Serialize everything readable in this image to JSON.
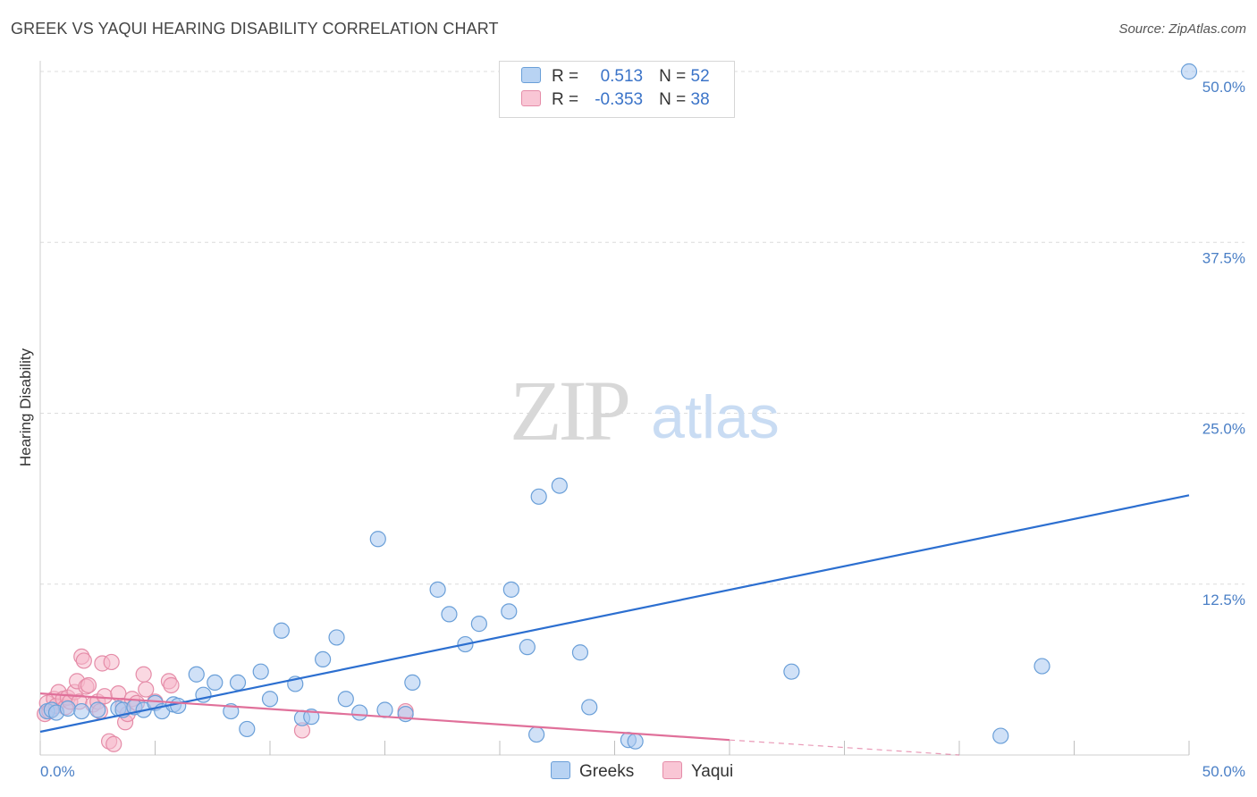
{
  "header": {
    "title": "GREEK VS YAQUI HEARING DISABILITY CORRELATION CHART",
    "source": "Source: ZipAtlas.com"
  },
  "watermark": {
    "zip": "ZIP",
    "atlas": "atlas"
  },
  "legend": {
    "rows": [
      {
        "r_label": "R =",
        "r_value": "0.513",
        "n_label": "N =",
        "n_value": "52"
      },
      {
        "r_label": "R =",
        "r_value": "-0.353",
        "n_label": "N =",
        "n_value": "38"
      }
    ]
  },
  "bottom_legend": {
    "greeks": "Greeks",
    "yaqui": "Yaqui"
  },
  "colors": {
    "greeks_fill": "#a9c8f0",
    "greeks_stroke": "#6a9fd8",
    "greeks_line": "#2c6fd0",
    "yaqui_fill": "#f5b8cb",
    "yaqui_stroke": "#e58ca8",
    "yaqui_line": "#e0709a",
    "tick": "#4a7fc6",
    "grid": "#dcdcdc"
  },
  "chart_data": {
    "type": "scatter",
    "title": "GREEK VS YAQUI HEARING DISABILITY CORRELATION CHART",
    "xlabel": "",
    "ylabel": "Hearing Disability",
    "xlim": [
      0,
      50
    ],
    "ylim": [
      0,
      52
    ],
    "y_ticks": [
      12.5,
      25.0,
      37.5,
      50.0
    ],
    "y_tick_labels": [
      "12.5%",
      "25.0%",
      "37.5%",
      "50.0%"
    ],
    "x_tick_labels": [
      "0.0%",
      "50.0%"
    ],
    "series": [
      {
        "name": "Greeks",
        "r": 0.513,
        "n": 52,
        "trend": {
          "x": [
            0,
            50
          ],
          "y": [
            1.7,
            19.0
          ]
        },
        "points": [
          [
            0.3,
            3.2
          ],
          [
            0.5,
            3.3
          ],
          [
            0.7,
            3.1
          ],
          [
            1.2,
            3.4
          ],
          [
            1.8,
            3.2
          ],
          [
            2.5,
            3.3
          ],
          [
            3.4,
            3.4
          ],
          [
            3.6,
            3.3
          ],
          [
            4.1,
            3.5
          ],
          [
            4.5,
            3.3
          ],
          [
            5.0,
            3.8
          ],
          [
            5.3,
            3.2
          ],
          [
            5.8,
            3.7
          ],
          [
            6.0,
            3.6
          ],
          [
            6.8,
            5.9
          ],
          [
            7.1,
            4.4
          ],
          [
            7.6,
            5.3
          ],
          [
            8.3,
            3.2
          ],
          [
            8.6,
            5.3
          ],
          [
            9.0,
            1.9
          ],
          [
            9.6,
            6.1
          ],
          [
            10.0,
            4.1
          ],
          [
            10.5,
            9.1
          ],
          [
            11.1,
            5.2
          ],
          [
            11.4,
            2.7
          ],
          [
            11.8,
            2.8
          ],
          [
            12.3,
            7.0
          ],
          [
            12.9,
            8.6
          ],
          [
            13.3,
            4.1
          ],
          [
            13.9,
            3.1
          ],
          [
            14.7,
            15.8
          ],
          [
            15.0,
            3.3
          ],
          [
            15.9,
            3.0
          ],
          [
            16.2,
            5.3
          ],
          [
            17.3,
            12.1
          ],
          [
            17.8,
            10.3
          ],
          [
            18.5,
            8.1
          ],
          [
            19.1,
            9.6
          ],
          [
            20.4,
            10.5
          ],
          [
            20.5,
            12.1
          ],
          [
            21.2,
            7.9
          ],
          [
            21.6,
            1.5
          ],
          [
            21.7,
            18.9
          ],
          [
            22.6,
            19.7
          ],
          [
            23.5,
            7.5
          ],
          [
            23.9,
            3.5
          ],
          [
            25.6,
            1.1
          ],
          [
            25.9,
            1.0
          ],
          [
            32.7,
            6.1
          ],
          [
            41.8,
            1.4
          ],
          [
            43.6,
            6.5
          ],
          [
            50.0,
            50.0
          ]
        ]
      },
      {
        "name": "Yaqui",
        "r": -0.353,
        "n": 38,
        "trend": {
          "x": [
            0,
            30
          ],
          "y": [
            4.5,
            1.1
          ]
        },
        "trend_dashed": {
          "x": [
            30,
            40
          ],
          "y": [
            1.1,
            0.0
          ]
        },
        "points": [
          [
            0.2,
            3.0
          ],
          [
            0.3,
            3.8
          ],
          [
            0.4,
            3.2
          ],
          [
            0.6,
            4.1
          ],
          [
            0.7,
            3.6
          ],
          [
            0.8,
            4.6
          ],
          [
            1.0,
            4.1
          ],
          [
            1.1,
            3.5
          ],
          [
            1.2,
            4.2
          ],
          [
            1.3,
            3.9
          ],
          [
            1.5,
            4.6
          ],
          [
            1.6,
            5.4
          ],
          [
            1.7,
            3.9
          ],
          [
            1.8,
            7.2
          ],
          [
            1.9,
            6.9
          ],
          [
            2.0,
            5.0
          ],
          [
            2.1,
            5.1
          ],
          [
            2.3,
            3.7
          ],
          [
            2.5,
            3.9
          ],
          [
            2.6,
            3.2
          ],
          [
            2.7,
            6.7
          ],
          [
            2.8,
            4.3
          ],
          [
            3.0,
            1.0
          ],
          [
            3.1,
            6.8
          ],
          [
            3.2,
            0.8
          ],
          [
            3.4,
            4.5
          ],
          [
            3.6,
            3.6
          ],
          [
            3.7,
            2.4
          ],
          [
            3.8,
            3.0
          ],
          [
            4.0,
            4.1
          ],
          [
            4.2,
            3.8
          ],
          [
            4.5,
            5.9
          ],
          [
            4.6,
            4.8
          ],
          [
            5.0,
            3.9
          ],
          [
            5.6,
            5.4
          ],
          [
            5.7,
            5.1
          ],
          [
            11.4,
            1.8
          ],
          [
            15.9,
            3.2
          ]
        ]
      }
    ]
  }
}
